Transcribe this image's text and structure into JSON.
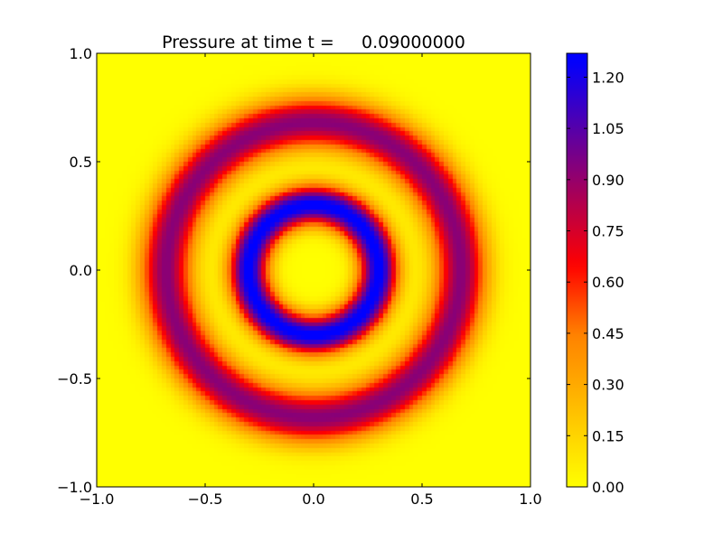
{
  "chart_data": {
    "type": "heatmap",
    "title": "Pressure at time t =     0.09000000",
    "xlabel": "",
    "ylabel": "",
    "xlim": [
      -1.0,
      1.0
    ],
    "ylim": [
      -1.0,
      1.0
    ],
    "x_ticks": [
      "−1.0",
      "−0.5",
      "0.0",
      "0.5",
      "1.0"
    ],
    "y_ticks": [
      "−1.0",
      "−0.5",
      "0.0",
      "0.5",
      "1.0"
    ],
    "x_tick_values": [
      -1.0,
      -0.5,
      0.0,
      0.5,
      1.0
    ],
    "y_tick_values": [
      -1.0,
      -0.5,
      0.0,
      0.5,
      1.0
    ],
    "grid": false,
    "colormap": {
      "stops": [
        {
          "value": 0.0,
          "color": "#ffff00"
        },
        {
          "value": 0.45,
          "color": "#ff8000"
        },
        {
          "value": 0.65,
          "color": "#ff0000"
        },
        {
          "value": 0.95,
          "color": "#800080"
        },
        {
          "value": 1.25,
          "color": "#0000ff"
        }
      ],
      "range": [
        0.0,
        1.27
      ]
    },
    "colorbar": {
      "ticks": [
        "0.00",
        "0.15",
        "0.30",
        "0.45",
        "0.60",
        "0.75",
        "0.90",
        "1.05",
        "1.20"
      ],
      "tick_values": [
        0.0,
        0.15,
        0.3,
        0.45,
        0.6,
        0.75,
        0.9,
        1.05,
        1.2
      ]
    },
    "field": {
      "description_rings": [
        {
          "radius": 0.3,
          "width": 0.09,
          "amplitude": 1.27
        },
        {
          "radius": 0.68,
          "width": 0.12,
          "amplitude": 0.93
        }
      ],
      "grid_n": 100
    }
  }
}
